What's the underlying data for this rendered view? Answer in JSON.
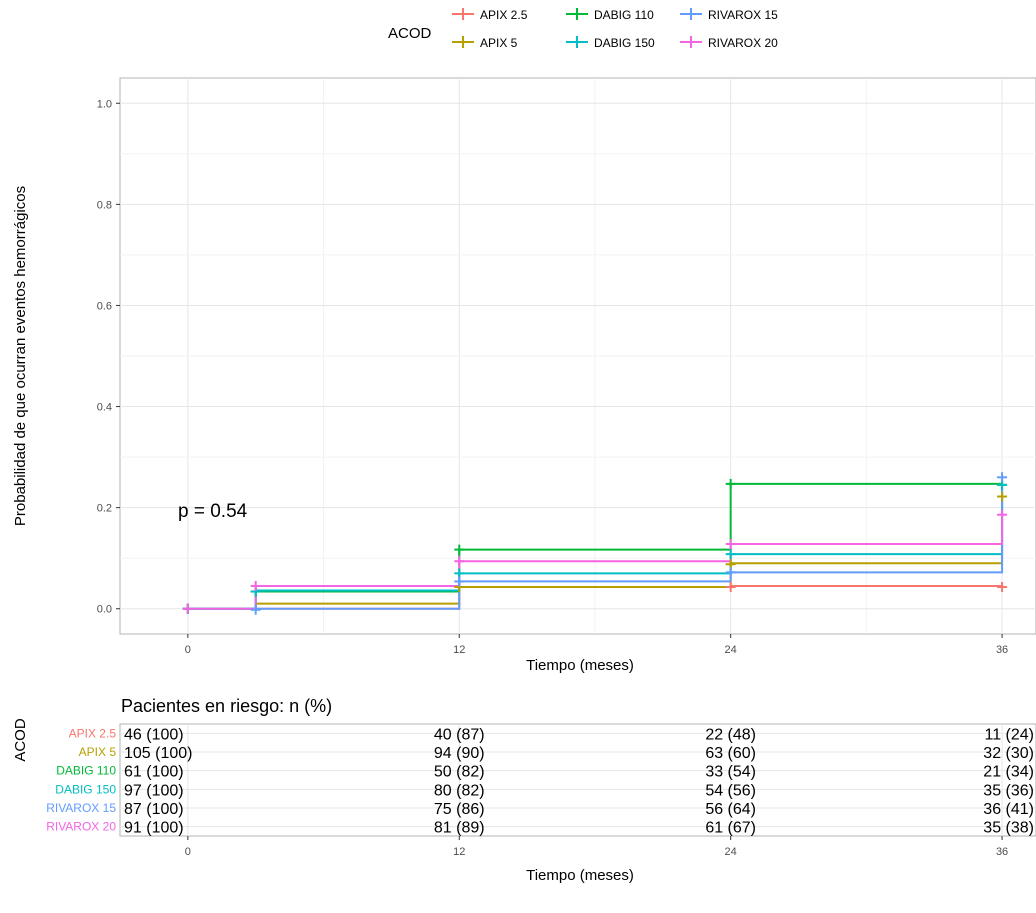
{
  "legend": {
    "title": "ACOD",
    "position": "top",
    "entries": [
      {
        "label": "APIX 2.5",
        "color": "#F8766D"
      },
      {
        "label": "APIX 5",
        "color": "#B79F00"
      },
      {
        "label": "DABIG 110",
        "color": "#00BA38"
      },
      {
        "label": "DABIG 150",
        "color": "#00BFC4"
      },
      {
        "label": "RIVAROX 15",
        "color": "#619CFF"
      },
      {
        "label": "RIVAROX 20",
        "color": "#F564E3"
      }
    ]
  },
  "chart_data": [
    {
      "type": "line",
      "subtype": "step",
      "xlabel": "Tiempo (meses)",
      "ylabel": "Probabilidad de que ocurran eventos hemorrágicos",
      "xlim": [
        -3,
        37.5
      ],
      "ylim": [
        -0.05,
        1.05
      ],
      "x_ticks": [
        0,
        12,
        24,
        36
      ],
      "y_ticks": [
        0.0,
        0.2,
        0.4,
        0.6,
        0.8,
        1.0
      ],
      "y_tick_labels": [
        "0.0",
        "0.2",
        "0.4",
        "0.6",
        "0.8",
        "1.0"
      ],
      "grid": true,
      "annotation": "p = 0.54",
      "series": [
        {
          "name": "APIX 2.5",
          "color": "#F8766D",
          "steps": [
            [
              0,
              0
            ],
            [
              3,
              0.0
            ],
            [
              12,
              0.043
            ],
            [
              24,
              0.045
            ],
            [
              36,
              0.045
            ]
          ],
          "censor": [
            [
              0,
              0
            ],
            [
              24,
              0.043
            ],
            [
              36,
              0.043
            ]
          ]
        },
        {
          "name": "APIX 5",
          "color": "#B79F00",
          "steps": [
            [
              0,
              0
            ],
            [
              3,
              0.01
            ],
            [
              12,
              0.043
            ],
            [
              24,
              0.09
            ],
            [
              36,
              0.222
            ]
          ],
          "censor": [
            [
              0,
              0
            ],
            [
              12,
              0.043
            ],
            [
              24,
              0.088
            ],
            [
              36,
              0.222
            ]
          ]
        },
        {
          "name": "DABIG 110",
          "color": "#00BA38",
          "steps": [
            [
              0,
              0
            ],
            [
              3,
              0.034
            ],
            [
              12,
              0.117
            ],
            [
              24,
              0.247
            ],
            [
              36,
              0.247
            ]
          ],
          "censor": [
            [
              0,
              0
            ],
            [
              3,
              0.034
            ],
            [
              12,
              0.117
            ],
            [
              24,
              0.247
            ],
            [
              36,
              0.245
            ]
          ]
        },
        {
          "name": "DABIG 150",
          "color": "#00BFC4",
          "steps": [
            [
              0,
              0
            ],
            [
              3,
              0.036
            ],
            [
              12,
              0.07
            ],
            [
              24,
              0.108
            ],
            [
              36,
              0.245
            ]
          ],
          "censor": [
            [
              0,
              0
            ],
            [
              3,
              0.034
            ],
            [
              12,
              0.07
            ],
            [
              24,
              0.108
            ],
            [
              36,
              0.245
            ]
          ]
        },
        {
          "name": "RIVAROX 15",
          "color": "#619CFF",
          "steps": [
            [
              0,
              0
            ],
            [
              3,
              0.0
            ],
            [
              12,
              0.054
            ],
            [
              24,
              0.072
            ],
            [
              36,
              0.26
            ]
          ],
          "censor": [
            [
              0,
              0
            ],
            [
              3,
              -0.002
            ],
            [
              12,
              0.054
            ],
            [
              24,
              0.072
            ],
            [
              36,
              0.26
            ]
          ]
        },
        {
          "name": "RIVAROX 20",
          "color": "#F564E3",
          "steps": [
            [
              0,
              0
            ],
            [
              3,
              0.045
            ],
            [
              12,
              0.094
            ],
            [
              24,
              0.128
            ],
            [
              36,
              0.186
            ]
          ],
          "censor": [
            [
              0,
              0
            ],
            [
              3,
              0.045
            ],
            [
              12,
              0.094
            ],
            [
              24,
              0.128
            ],
            [
              36,
              0.186
            ]
          ]
        }
      ]
    },
    {
      "type": "table",
      "title": "Pacientes en riesgo: n (%)",
      "ylabel": "ACOD",
      "xlabel": "Tiempo (meses)",
      "x_ticks": [
        0,
        12,
        24,
        36
      ],
      "rows": [
        {
          "label": "APIX 2.5",
          "color": "#F8766D",
          "values": [
            "46 (100)",
            "40 (87)",
            "22 (48)",
            "11 (24)"
          ]
        },
        {
          "label": "APIX 5",
          "color": "#B79F00",
          "values": [
            "105 (100)",
            "94 (90)",
            "63 (60)",
            "32 (30)"
          ]
        },
        {
          "label": "DABIG 110",
          "color": "#00BA38",
          "values": [
            "61 (100)",
            "50 (82)",
            "33 (54)",
            "21 (34)"
          ]
        },
        {
          "label": "DABIG 150",
          "color": "#00BFC4",
          "values": [
            "97 (100)",
            "80 (82)",
            "54 (56)",
            "35 (36)"
          ]
        },
        {
          "label": "RIVAROX 15",
          "color": "#619CFF",
          "values": [
            "87 (100)",
            "75 (86)",
            "56 (64)",
            "36 (41)"
          ]
        },
        {
          "label": "RIVAROX 20",
          "color": "#F564E3",
          "values": [
            "91 (100)",
            "81 (89)",
            "61 (67)",
            "35 (38)"
          ]
        }
      ]
    }
  ]
}
